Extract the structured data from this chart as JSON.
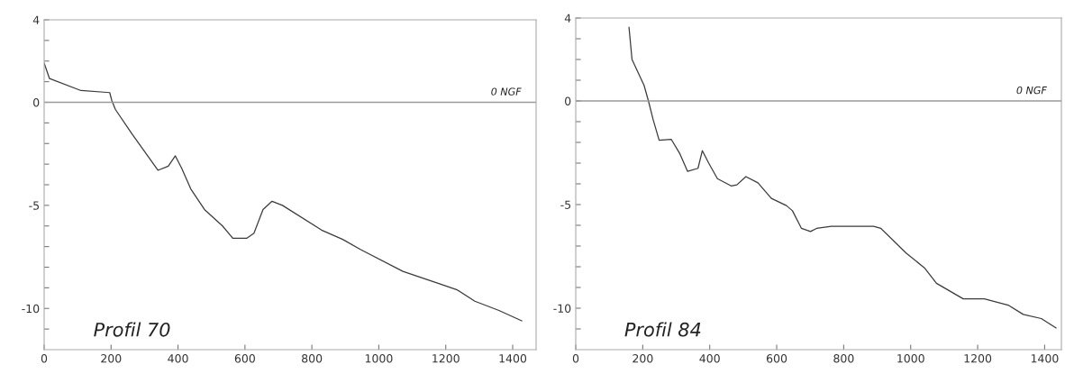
{
  "chart_data": [
    {
      "type": "line",
      "xlim": [
        0,
        1470
      ],
      "ylim": [
        -12,
        4
      ],
      "xticks": [
        0,
        200,
        400,
        600,
        800,
        1000,
        1200,
        1400
      ],
      "yticks": [
        4,
        {
          "value": 3,
          "label": null
        },
        {
          "value": 2,
          "label": null
        },
        {
          "value": 1,
          "label": null
        },
        0,
        {
          "value": -1,
          "label": null
        },
        {
          "value": -2,
          "label": null
        },
        {
          "value": -3,
          "label": null
        },
        {
          "value": -4,
          "label": null
        },
        -5,
        {
          "value": -6,
          "label": null
        },
        {
          "value": -7,
          "label": null
        },
        {
          "value": -8,
          "label": null
        },
        {
          "value": -9,
          "label": null
        },
        -10,
        {
          "value": -11,
          "label": null
        }
      ],
      "series": [
        {
          "color": "#3a3a3a",
          "x": [
            0,
            16,
            110,
            196,
            202,
            213,
            263,
            340,
            371,
            392,
            411,
            438,
            479,
            533,
            564,
            605,
            627,
            654,
            681,
            712,
            829,
            892,
            946,
            1072,
            1189,
            1234,
            1287,
            1359,
            1427
          ],
          "values": [
            1.9,
            1.15,
            0.57,
            0.47,
            0.09,
            -0.35,
            -1.55,
            -3.3,
            -3.1,
            -2.6,
            -3.2,
            -4.2,
            -5.2,
            -6.0,
            -6.6,
            -6.6,
            -6.35,
            -5.2,
            -4.8,
            -5.0,
            -6.2,
            -6.65,
            -7.15,
            -8.2,
            -8.85,
            -9.1,
            -9.65,
            -10.1,
            -10.6
          ]
        }
      ],
      "ref_lines": [
        {
          "axis": "y",
          "value": 0,
          "label": "0 NGF",
          "color": "#9a9a9a"
        }
      ],
      "annotations": [
        "Profil 70"
      ]
    },
    {
      "type": "line",
      "xlim": [
        0,
        1450
      ],
      "ylim": [
        -12,
        4
      ],
      "xticks": [
        0,
        200,
        400,
        600,
        800,
        1000,
        1200,
        1400
      ],
      "yticks": [
        4,
        {
          "value": 3,
          "label": null
        },
        {
          "value": 2,
          "label": null
        },
        {
          "value": 1,
          "label": null
        },
        0,
        {
          "value": -1,
          "label": null
        },
        {
          "value": -2,
          "label": null
        },
        {
          "value": -3,
          "label": null
        },
        {
          "value": -4,
          "label": null
        },
        -5,
        {
          "value": -6,
          "label": null
        },
        {
          "value": -7,
          "label": null
        },
        {
          "value": -8,
          "label": null
        },
        {
          "value": -9,
          "label": null
        },
        -10,
        {
          "value": -11,
          "label": null
        }
      ],
      "series": [
        {
          "color": "#3a3a3a",
          "x": [
            159,
            168,
            204,
            217,
            231,
            249,
            285,
            311,
            334,
            365,
            378,
            397,
            423,
            464,
            481,
            508,
            544,
            584,
            629,
            647,
            674,
            701,
            719,
            763,
            889,
            911,
            987,
            1041,
            1077,
            1157,
            1220,
            1291,
            1336,
            1390,
            1434
          ],
          "values": [
            3.55,
            2.0,
            0.75,
            0.0,
            -0.9,
            -1.9,
            -1.85,
            -2.55,
            -3.4,
            -3.25,
            -2.4,
            -3.0,
            -3.75,
            -4.1,
            -4.05,
            -3.65,
            -3.95,
            -4.7,
            -5.05,
            -5.3,
            -6.15,
            -6.3,
            -6.15,
            -6.05,
            -6.05,
            -6.15,
            -7.35,
            -8.05,
            -8.8,
            -9.55,
            -9.55,
            -9.85,
            -10.3,
            -10.5,
            -10.95
          ]
        }
      ],
      "ref_lines": [
        {
          "axis": "y",
          "value": 0,
          "label": "0 NGF",
          "color": "#9a9a9a"
        }
      ],
      "annotations": [
        "Profil 84"
      ]
    }
  ]
}
